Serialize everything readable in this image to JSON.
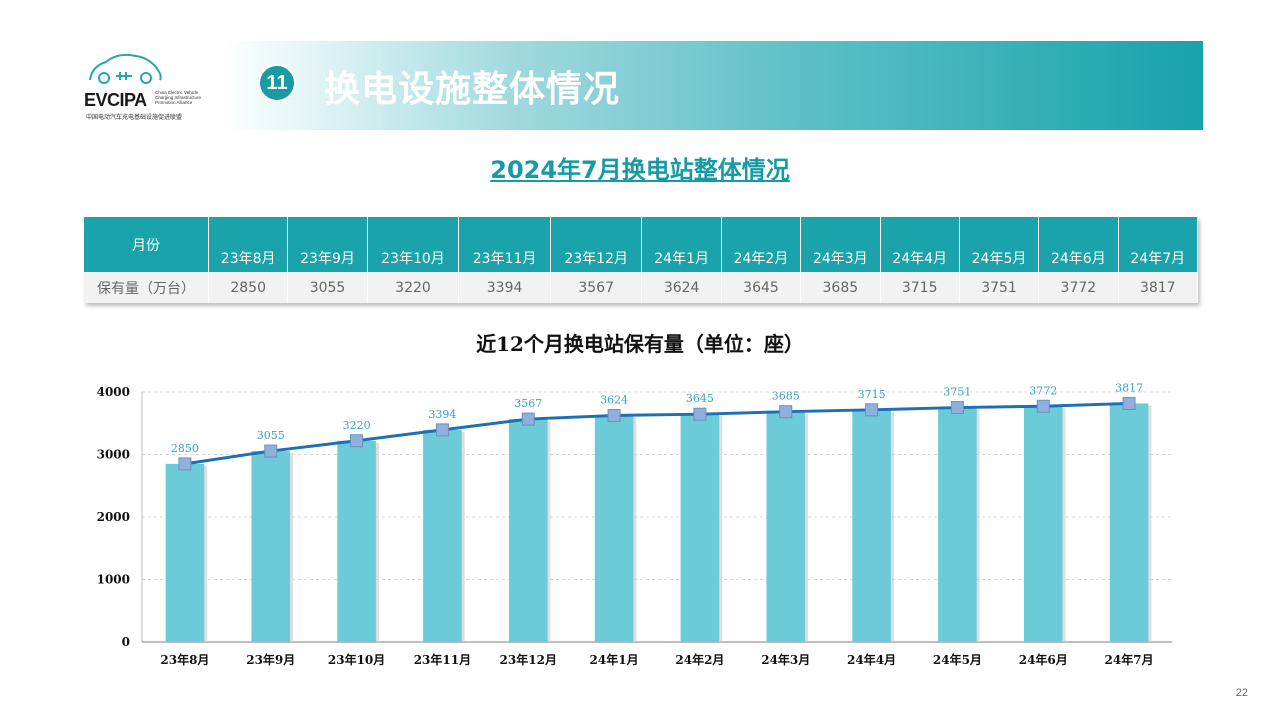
{
  "logo": {
    "name": "EVCIPA",
    "tagline": "China Electric Vehicle Charging Infrastructure Promotion Alliance",
    "cn_name": "中国电动汽车充电基础设施促进联盟"
  },
  "header": {
    "section_number": "11",
    "title": "换电设施整体情况"
  },
  "subtitle": "2024年7月换电站整体情况",
  "table": {
    "row_header_1": "月份",
    "row_header_2": "保有量（万台）",
    "months": [
      "23年8月",
      "23年9月",
      "23年10月",
      "23年11月",
      "23年12月",
      "24年1月",
      "24年2月",
      "24年3月",
      "24年4月",
      "24年5月",
      "24年6月",
      "24年7月"
    ],
    "values": [
      "2850",
      "3055",
      "3220",
      "3394",
      "3567",
      "3624",
      "3645",
      "3685",
      "3715",
      "3751",
      "3772",
      "3817"
    ]
  },
  "chart_data": {
    "type": "bar",
    "title": "近12个月换电站保有量（单位：座）",
    "categories": [
      "23年8月",
      "23年9月",
      "23年10月",
      "23年11月",
      "23年12月",
      "24年1月",
      "24年2月",
      "24年3月",
      "24年4月",
      "24年5月",
      "24年6月",
      "24年7月"
    ],
    "values": [
      2850,
      3055,
      3220,
      3394,
      3567,
      3624,
      3645,
      3685,
      3715,
      3751,
      3772,
      3817
    ],
    "overlay_line": true,
    "ylim": [
      0,
      4000
    ],
    "yticks": [
      0,
      1000,
      2000,
      3000,
      4000
    ],
    "grid": true,
    "bar_color": "#6ccbd9",
    "line_color": "#1f6fb5",
    "marker_color": "#8fb0dc",
    "label_color": "#3aa0c8"
  },
  "page_number": "22",
  "colors": {
    "accent": "#1ba3ab",
    "title_teal": "#169aa4"
  }
}
